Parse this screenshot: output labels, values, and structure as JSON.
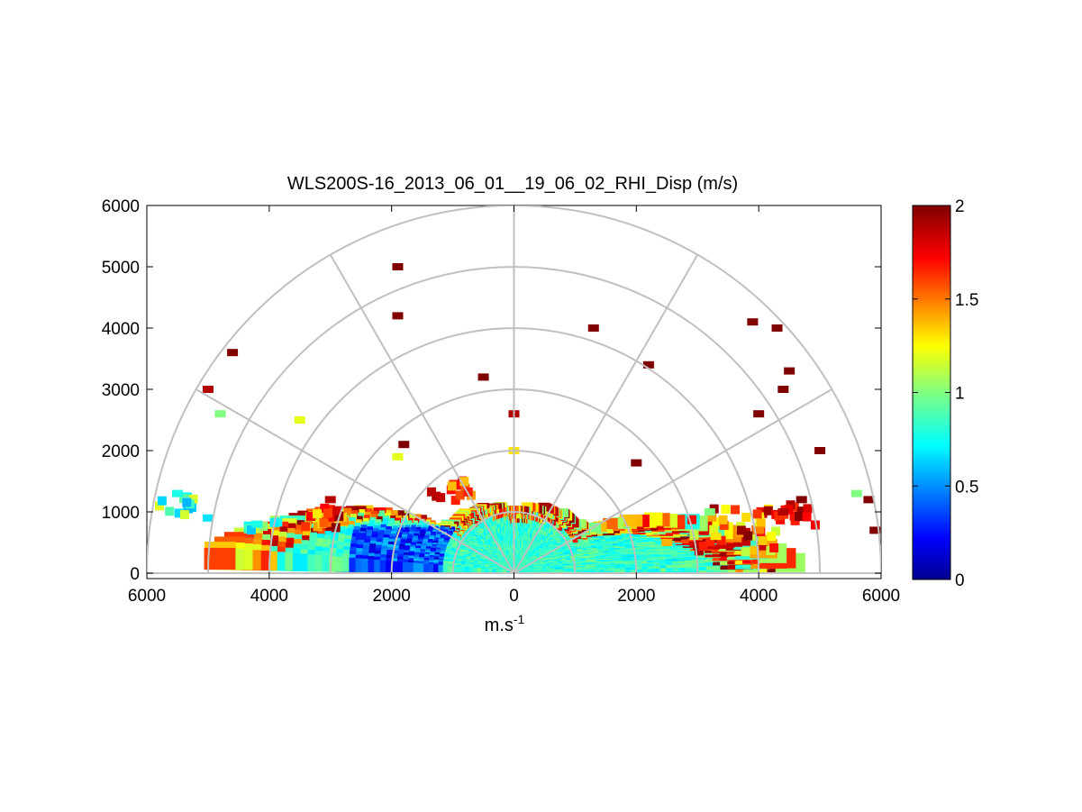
{
  "chart_data": {
    "type": "heatmap",
    "subtype": "polar RHI scan (half-circle sector plot)",
    "title": "WLS200S-16_2013_06_01__19_06_02_RHI_Disp (m/s)",
    "xlabel_base": "m.s",
    "xlabel_exp": "-1",
    "ylabel": "",
    "xlim": [
      -6000,
      6000
    ],
    "ylim": [
      -100,
      6000
    ],
    "x_tick_values": [
      -6000,
      -4000,
      -2000,
      0,
      2000,
      4000,
      6000
    ],
    "x_tick_labels": [
      "6000",
      "4000",
      "2000",
      "0",
      "2000",
      "4000",
      "6000"
    ],
    "y_ticks": [
      0,
      1000,
      2000,
      3000,
      4000,
      5000,
      6000
    ],
    "y_tick_labels": [
      "0",
      "1000",
      "2000",
      "3000",
      "4000",
      "5000",
      "6000"
    ],
    "polar_grid": {
      "range_rings": [
        1000,
        2000,
        3000,
        4000,
        5000,
        6000
      ],
      "spokes_deg": [
        0,
        30,
        60,
        90,
        120,
        150,
        180
      ]
    },
    "colorbar": {
      "colormap": "jet",
      "min": 0,
      "max": 2,
      "ticks": [
        0,
        0.5,
        1,
        1.5,
        2
      ],
      "tick_labels": [
        "0",
        "0.5",
        "1",
        "1.5",
        "2"
      ]
    },
    "data_description": "Dispersion values (m/s), mostly 0.8-1.1 near ground, higher values (1.3-2) at range edges",
    "points": [
      {
        "x": 4400,
        "y": 1000,
        "v": 1.9
      },
      {
        "x": 4700,
        "y": 1200,
        "v": 2.0
      },
      {
        "x": 4000,
        "y": 700,
        "v": 1.5
      },
      {
        "x": 3300,
        "y": 600,
        "v": 1.3
      },
      {
        "x": 3200,
        "y": 1000,
        "v": 1.0
      },
      {
        "x": 2500,
        "y": 500,
        "v": 1.4
      },
      {
        "x": 5600,
        "y": 1300,
        "v": 1.0
      },
      {
        "x": -2500,
        "y": 600,
        "v": 0.3
      },
      {
        "x": -3000,
        "y": 1200,
        "v": 1.9
      },
      {
        "x": -5500,
        "y": 1300,
        "v": 0.8
      },
      {
        "x": -5000,
        "y": 900,
        "v": 0.7
      },
      {
        "x": -4200,
        "y": 800,
        "v": 0.8
      },
      {
        "x": -1900,
        "y": 1900,
        "v": 1.2
      },
      {
        "x": -3500,
        "y": 2500,
        "v": 1.2
      },
      {
        "x": -4800,
        "y": 2600,
        "v": 1.0
      },
      {
        "x": -5000,
        "y": 3000,
        "v": 1.9
      },
      {
        "x": -4600,
        "y": 3600,
        "v": 2.0
      },
      {
        "x": -1900,
        "y": 5000,
        "v": 2.0
      },
      {
        "x": -1900,
        "y": 4200,
        "v": 2.0
      },
      {
        "x": -500,
        "y": 3200,
        "v": 2.0
      },
      {
        "x": 1300,
        "y": 4000,
        "v": 2.0
      },
      {
        "x": 2200,
        "y": 3400,
        "v": 2.0
      },
      {
        "x": 3900,
        "y": 4100,
        "v": 2.0
      },
      {
        "x": 4300,
        "y": 4000,
        "v": 2.0
      },
      {
        "x": 4500,
        "y": 3300,
        "v": 2.0
      },
      {
        "x": 4400,
        "y": 3000,
        "v": 2.0
      },
      {
        "x": 4000,
        "y": 2600,
        "v": 2.0
      },
      {
        "x": 5000,
        "y": 2000,
        "v": 2.0
      },
      {
        "x": 2000,
        "y": 1800,
        "v": 2.0
      },
      {
        "x": 5800,
        "y": 1200,
        "v": 2.0
      },
      {
        "x": 5900,
        "y": 700,
        "v": 2.0
      },
      {
        "x": -1800,
        "y": 2100,
        "v": 2.0
      },
      {
        "x": 0,
        "y": 2600,
        "v": 1.9
      },
      {
        "x": 0,
        "y": 2000,
        "v": 1.3
      }
    ]
  }
}
